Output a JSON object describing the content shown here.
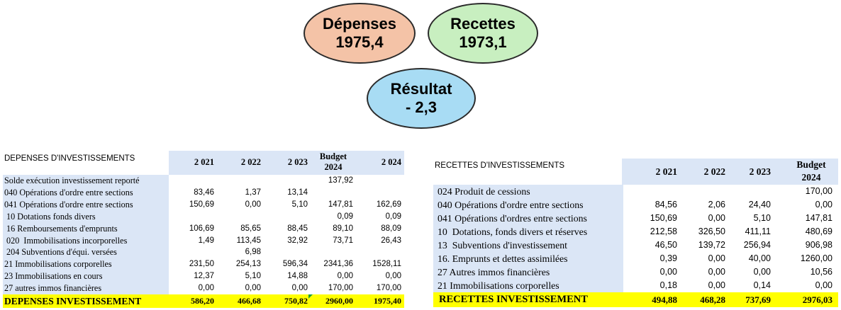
{
  "bubbles": {
    "depenses": {
      "label": "Dépenses",
      "value": "1975,4",
      "color": "#f4c3a7"
    },
    "recettes": {
      "label": "Recettes",
      "value": "1973,1",
      "color": "#c8efc0"
    },
    "resultat": {
      "label": "Résultat",
      "value": "- 2,3",
      "color": "#a8dcf4"
    }
  },
  "left_table": {
    "title": "DEPENSES D'INVESTISSEMENTS",
    "headers": [
      "2 021",
      "2 022",
      "2 023",
      "Budget 2024",
      "2 024"
    ],
    "rows": [
      {
        "label": "Solde exécution investissement reporté",
        "values": [
          "",
          "",
          "",
          "137,92",
          ""
        ]
      },
      {
        "label": "040 Opérations d'ordre entre sections",
        "values": [
          "83,46",
          "1,37",
          "13,14",
          "",
          ""
        ]
      },
      {
        "label": "041 Opérations d'ordre entre sections",
        "values": [
          "150,69",
          "0,00",
          "5,10",
          "147,81",
          "162,69"
        ]
      },
      {
        "label": " 10 Dotations fonds divers",
        "values": [
          "",
          "",
          "",
          "0,09",
          "0,09"
        ]
      },
      {
        "label": " 16 Remboursements d'emprunts",
        "values": [
          "106,69",
          "85,65",
          "88,45",
          "89,10",
          "88,09"
        ]
      },
      {
        "label": " 020  Immobilisations incorporelles",
        "values": [
          "1,49",
          "113,45",
          "32,92",
          "73,71",
          "26,43"
        ]
      },
      {
        "label": " 204 Subventions d'équi. versées",
        "values": [
          "",
          "6,98",
          "",
          "",
          ""
        ]
      },
      {
        "label": "21 Immobilisations corporelles",
        "values": [
          "231,50",
          "254,13",
          "596,34",
          "2341,36",
          "1528,11"
        ]
      },
      {
        "label": "23 Immobilisations en cours",
        "values": [
          "12,37",
          "5,10",
          "14,88",
          "0,00",
          "0,00"
        ]
      },
      {
        "label": "27 autres immos financières",
        "values": [
          "0,00",
          "0,00",
          "0,00",
          "170,00",
          "170,00"
        ]
      }
    ],
    "total": {
      "label": "DEPENSES INVESTISSEMENT",
      "values": [
        "586,20",
        "466,68",
        "750,82",
        "2960,00",
        "1975,40"
      ]
    }
  },
  "right_table": {
    "title": "RECETTES D'INVESTISSEMENTS",
    "headers": [
      "2 021",
      "2 022",
      "2 023",
      "Budget 2024"
    ],
    "rows": [
      {
        "label": "024 Produit de cessions",
        "values": [
          "",
          "",
          "",
          "170,00"
        ]
      },
      {
        "label": "040 Opérations d'ordre entre sections",
        "values": [
          "84,56",
          "2,06",
          "24,40",
          "0,00"
        ]
      },
      {
        "label": "041 Opérations d'ordres entre sections",
        "values": [
          "150,69",
          "0,00",
          "5,10",
          "147,81"
        ]
      },
      {
        "label": "10  Dotations, fonds divers et réserves",
        "values": [
          "212,58",
          "326,50",
          "411,11",
          "480,69"
        ]
      },
      {
        "label": "13  Subventions d'investissement",
        "values": [
          "46,50",
          "139,72",
          "256,94",
          "906,98"
        ]
      },
      {
        "label": "16. Emprunts et dettes assimilées",
        "values": [
          "0,39",
          "0,00",
          "40,00",
          "1260,00"
        ]
      },
      {
        "label": "27 Autres immos financières",
        "values": [
          "0,00",
          "0,00",
          "0,00",
          "10,56"
        ]
      },
      {
        "label": "21 Immobilisations corporelles",
        "values": [
          "0,18",
          "0,00",
          "0,14",
          "0,00"
        ]
      }
    ],
    "total": {
      "label": "RECETTES INVESTISSEMENT",
      "values": [
        "494,88",
        "468,28",
        "737,69",
        "2976,03"
      ]
    }
  }
}
